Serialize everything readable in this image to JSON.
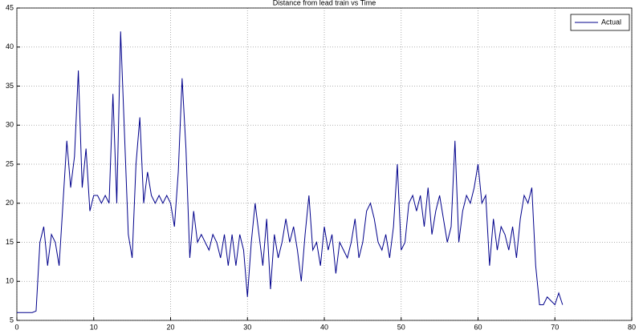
{
  "chart_data": {
    "type": "line",
    "title": "Distance from lead train vs Time",
    "x": [
      0,
      0.5,
      1,
      1.5,
      2,
      2.5,
      3,
      3.5,
      4,
      4.5,
      5,
      5.5,
      6,
      6.5,
      7,
      7.5,
      8,
      8.5,
      9,
      9.5,
      10,
      10.5,
      11,
      11.5,
      12,
      12.5,
      13,
      13.5,
      14,
      14.5,
      15,
      15.5,
      16,
      16.5,
      17,
      17.5,
      18,
      18.5,
      19,
      19.5,
      20,
      20.5,
      21,
      21.5,
      22,
      22.5,
      23,
      23.5,
      24,
      24.5,
      25,
      25.5,
      26,
      26.5,
      27,
      27.5,
      28,
      28.5,
      29,
      29.5,
      30,
      30.5,
      31,
      31.5,
      32,
      32.5,
      33,
      33.5,
      34,
      34.5,
      35,
      35.5,
      36,
      36.5,
      37,
      37.5,
      38,
      38.5,
      39,
      39.5,
      40,
      40.5,
      41,
      41.5,
      42,
      42.5,
      43,
      43.5,
      44,
      44.5,
      45,
      45.5,
      46,
      46.5,
      47,
      47.5,
      48,
      48.5,
      49,
      49.5,
      50,
      50.5,
      51,
      51.5,
      52,
      52.5,
      53,
      53.5,
      54,
      54.5,
      55,
      55.5,
      56,
      56.5,
      57,
      57.5,
      58,
      58.5,
      59,
      59.5,
      60,
      60.5,
      61,
      61.5,
      62,
      62.5,
      63,
      63.5,
      64,
      64.5,
      65,
      65.5,
      66,
      66.5,
      67,
      67.5,
      68,
      68.5,
      69,
      69.5,
      70,
      70.5,
      71
    ],
    "series": [
      {
        "name": "Actual",
        "color": "#00008b",
        "values": [
          6,
          6,
          6,
          6,
          6,
          6.2,
          15,
          17,
          12,
          16,
          15,
          12,
          20,
          28,
          22,
          26,
          37,
          22,
          27,
          19,
          21,
          21,
          20,
          21,
          20,
          34,
          20,
          42,
          29,
          16,
          13,
          25,
          31,
          20,
          24,
          21,
          20,
          21,
          20,
          21,
          20,
          17,
          24,
          36,
          27,
          13,
          19,
          15,
          16,
          15,
          14,
          16,
          15,
          13,
          16,
          12,
          16,
          12,
          16,
          14,
          8,
          15,
          20,
          16,
          12,
          18,
          9,
          16,
          13,
          15,
          18,
          15,
          17,
          14,
          10,
          16,
          21,
          14,
          15,
          12,
          17,
          14,
          16,
          11,
          15,
          14,
          13,
          15,
          18,
          13,
          15,
          19,
          20,
          18,
          15,
          14,
          16,
          13,
          17,
          25,
          14,
          15,
          20,
          21,
          19,
          21,
          17,
          22,
          16,
          19,
          21,
          18,
          15,
          17,
          28,
          15,
          19,
          21,
          20,
          22,
          25,
          20,
          21,
          12,
          18,
          14,
          17,
          16,
          14,
          17,
          13,
          18,
          21,
          20,
          22,
          12,
          7,
          7,
          8,
          7.5,
          7,
          8.5,
          7
        ]
      }
    ],
    "xlim": [
      0,
      80
    ],
    "ylim": [
      5,
      45
    ],
    "xticks": [
      0,
      10,
      20,
      30,
      40,
      50,
      60,
      70,
      80
    ],
    "yticks": [
      5,
      10,
      15,
      20,
      25,
      30,
      35,
      40,
      45
    ],
    "grid": true,
    "legend": "top-right"
  }
}
